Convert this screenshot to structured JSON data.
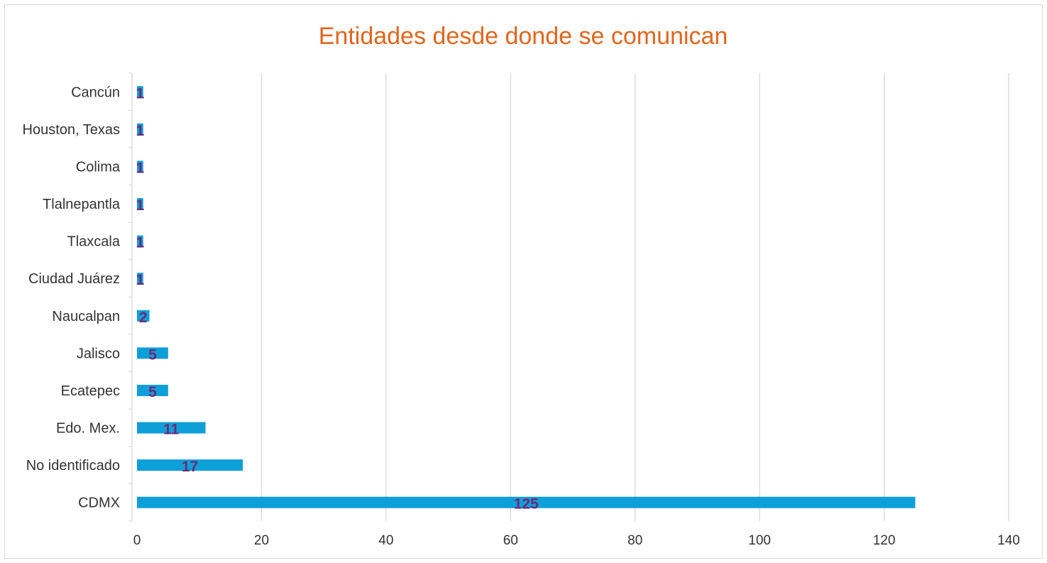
{
  "chart_data": {
    "type": "bar",
    "orientation": "horizontal",
    "title": "Entidades desde donde se comunican",
    "categories": [
      "CDMX",
      "No identificado",
      "Edo. Mex.",
      "Ecatepec",
      "Jalisco",
      "Naucalpan",
      "Ciudad Juárez",
      "Tlaxcala",
      "Tlalnepantla",
      "Colima",
      "Houston, Texas",
      "Cancún"
    ],
    "values": [
      125,
      17,
      11,
      5,
      5,
      2,
      1,
      1,
      1,
      1,
      1,
      1
    ],
    "data_labels": [
      "125",
      "17",
      "11",
      "5",
      "5",
      "2",
      "1",
      "1",
      "1",
      "1",
      "1",
      "1"
    ],
    "xlim": [
      0,
      140
    ],
    "xticks": [
      0,
      20,
      40,
      60,
      80,
      100,
      120,
      140
    ],
    "xtick_labels": [
      "0",
      "20",
      "40",
      "60",
      "80",
      "100",
      "120",
      "140"
    ],
    "xlabel": "",
    "ylabel": "",
    "grid": "vertical",
    "legend": "none",
    "colors": {
      "bar": "#0e9fd8",
      "title": "#e0661f",
      "data_label": "#6a2a7a",
      "grid": "#d9d9d9",
      "text": "#333333"
    }
  }
}
